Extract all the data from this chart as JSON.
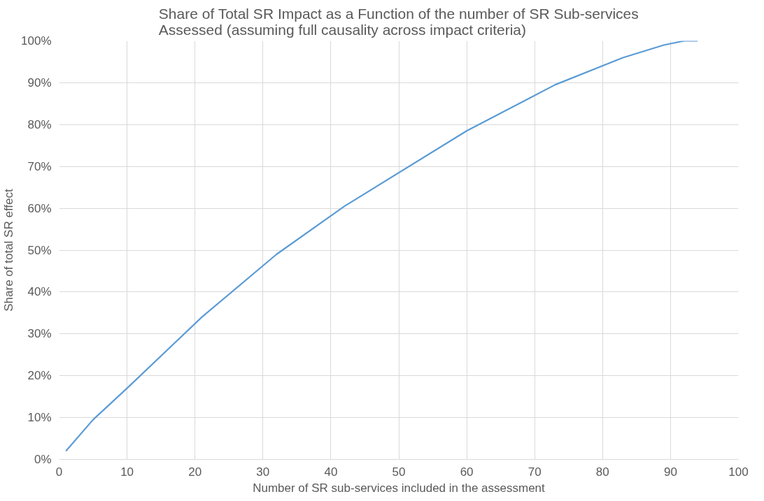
{
  "chart_data": {
    "type": "line",
    "title": "Share of Total SR Impact as a Function of the number of SR Sub-services\nAssessed (assuming full causality across impact criteria)",
    "xlabel": "Number of SR sub-services included in the assessment",
    "ylabel": "Share of total SR effect",
    "x": [
      1,
      5,
      8,
      10,
      21,
      32,
      42,
      60,
      73,
      83,
      89,
      92,
      94
    ],
    "series": [
      {
        "color": "#5b9bd5",
        "values": [
          2,
          9.5,
          14,
          17,
          34,
          49,
          60.5,
          78.5,
          89.5,
          96,
          99,
          100,
          100
        ]
      }
    ],
    "xlim": [
      0,
      100
    ],
    "xticks": [
      0,
      10,
      20,
      30,
      40,
      50,
      60,
      70,
      80,
      90,
      100
    ],
    "ylim": [
      0,
      100
    ],
    "yticks": [
      {
        "value": 0,
        "label": "0%"
      },
      {
        "value": 10,
        "label": "10%"
      },
      {
        "value": 20,
        "label": "20%"
      },
      {
        "value": 30,
        "label": "30%"
      },
      {
        "value": 40,
        "label": "40%"
      },
      {
        "value": 50,
        "label": "50%"
      },
      {
        "value": 60,
        "label": "60%"
      },
      {
        "value": 70,
        "label": "70%"
      },
      {
        "value": 80,
        "label": "80%"
      },
      {
        "value": 90,
        "label": "90%"
      },
      {
        "value": 100,
        "label": "100%"
      }
    ],
    "grid": true,
    "marker": "none",
    "line_style": "solid"
  }
}
